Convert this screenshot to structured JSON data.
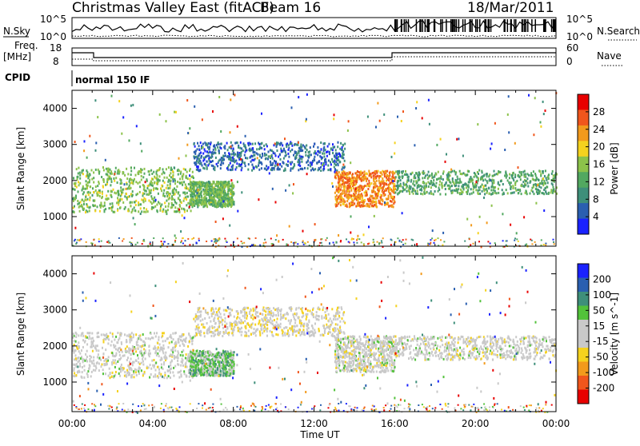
{
  "header": {
    "title": "Christmas Valley East (fitACF)",
    "beam": "Beam 16",
    "date": "18/Mar/2011"
  },
  "top_panel": {
    "left_label": "N.Sky",
    "right_label": "N.Search",
    "ticks_left": [
      "10^5",
      "10^0"
    ],
    "ticks_right": [
      "10^5",
      "10^0"
    ]
  },
  "freq_panel": {
    "left_label_line1": "Freq.",
    "left_label_line2": "[MHz]",
    "right_label": "Nave",
    "ticks_left": [
      "18",
      "8"
    ],
    "ticks_right": [
      "60",
      "0"
    ]
  },
  "cpid": {
    "label": "CPID",
    "mode": "normal 150 IF"
  },
  "x_axis": {
    "label": "Time UT",
    "ticks": [
      "00:00",
      "04:00",
      "08:00",
      "12:00",
      "16:00",
      "20:00",
      "00:00"
    ]
  },
  "chart_data": [
    {
      "type": "heatmap",
      "title": "",
      "xlabel": "Time UT",
      "ylabel": "Slant Range [km]",
      "xlim": [
        0,
        24
      ],
      "ylim": [
        180,
        4500
      ],
      "yticks": [
        1000,
        2000,
        3000,
        4000
      ],
      "colorbar": {
        "label": "Power [dB]",
        "range": [
          0,
          32
        ],
        "ticks": [
          "4",
          "8",
          "12",
          "16",
          "20",
          "24",
          "28"
        ],
        "colors": [
          "#1a22ff",
          "#2a5fb0",
          "#3e8f7a",
          "#52a860",
          "#8cc24a",
          "#f5d21e",
          "#f29a1c",
          "#f0561c",
          "#e80000"
        ]
      },
      "echo_regions": [
        {
          "t_start": 0.0,
          "t_end": 6.0,
          "range_low": 1150,
          "range_high": 2400,
          "value": 15
        },
        {
          "t_start": 5.8,
          "t_end": 8.0,
          "range_low": 1300,
          "range_high": 2000,
          "value": 14
        },
        {
          "t_start": 6.0,
          "t_end": 13.5,
          "range_low": 2300,
          "range_high": 3100,
          "value": 6
        },
        {
          "t_start": 13.0,
          "t_end": 16.0,
          "range_low": 1300,
          "range_high": 2300,
          "value": 24
        },
        {
          "t_start": 16.0,
          "t_end": 24.0,
          "range_low": 1650,
          "range_high": 2300,
          "value": 12
        }
      ]
    },
    {
      "type": "heatmap",
      "title": "",
      "xlabel": "Time UT",
      "ylabel": "Slant Range [km]",
      "xlim": [
        0,
        24
      ],
      "ylim": [
        180,
        4500
      ],
      "yticks": [
        1000,
        2000,
        3000,
        4000
      ],
      "colorbar": {
        "label": "Velocity [m s^-1]",
        "range": [
          -240,
          240
        ],
        "ticks": [
          "200",
          "100",
          "50",
          "15",
          "-15",
          "-50",
          "-100",
          "-200"
        ],
        "colors": [
          "#e80000",
          "#f0561c",
          "#f29a1c",
          "#f5d21e",
          "#c9c9c9",
          "#c9c9c9",
          "#52c23a",
          "#3e8f7a",
          "#2a5fb0",
          "#1a22ff"
        ]
      },
      "echo_regions": [
        {
          "t_start": 0.0,
          "t_end": 6.0,
          "range_low": 1150,
          "range_high": 2400,
          "value": 0
        },
        {
          "t_start": 5.8,
          "t_end": 8.0,
          "range_low": 1200,
          "range_high": 1900,
          "value": 60
        },
        {
          "t_start": 6.0,
          "t_end": 13.5,
          "range_low": 2300,
          "range_high": 3100,
          "value": -20
        },
        {
          "t_start": 13.0,
          "t_end": 16.0,
          "range_low": 1300,
          "range_high": 2300,
          "value": 0
        },
        {
          "t_start": 16.0,
          "t_end": 24.0,
          "range_low": 1650,
          "range_high": 2300,
          "value": 0
        }
      ]
    }
  ],
  "colors": {
    "line": "#000000",
    "background": "#ffffff"
  }
}
